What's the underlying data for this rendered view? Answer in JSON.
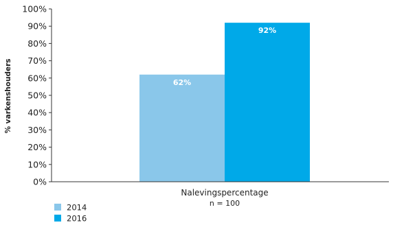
{
  "chart_data": {
    "type": "bar",
    "ylabel": "% varkenshouders",
    "xlabel": "",
    "categories": [
      "Nalevingspercentage"
    ],
    "note": "n = 100",
    "ylim": [
      0,
      100
    ],
    "yticks": [
      "0%",
      "10%",
      "20%",
      "30%",
      "40%",
      "50%",
      "60%",
      "70%",
      "80%",
      "90%",
      "100%"
    ],
    "series": [
      {
        "name": "2014",
        "values": [
          62
        ],
        "data_label": "62%",
        "color": "#8ac7ea"
      },
      {
        "name": "2016",
        "values": [
          92
        ],
        "data_label": "92%",
        "color": "#00a9e8"
      }
    ],
    "legend_position": "bottom-left",
    "grid": false
  }
}
